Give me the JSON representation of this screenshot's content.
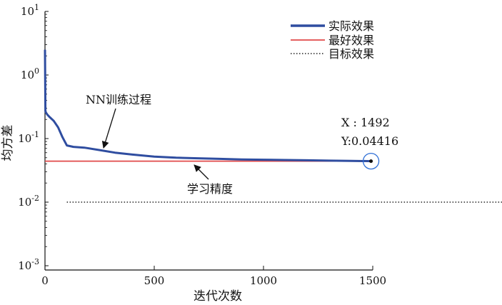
{
  "chart_data": {
    "type": "line",
    "title": "",
    "xlabel": "迭代次数",
    "ylabel": "均方差",
    "xlim": [
      0,
      1500
    ],
    "ylim": [
      0.001,
      10
    ],
    "yscale": "log",
    "x_ticks": [
      0,
      500,
      1000,
      1500
    ],
    "x_tick_labels": [
      "0",
      "500",
      "1000",
      "1500"
    ],
    "y_ticks": [
      0.001,
      0.01,
      0.1,
      1,
      10
    ],
    "y_tick_labels": [
      {
        "base": "10",
        "exp": "-3"
      },
      {
        "base": "10",
        "exp": "-2"
      },
      {
        "base": "10",
        "exp": "-1"
      },
      {
        "base": "10",
        "exp": "0"
      },
      {
        "base": "10",
        "exp": "1"
      }
    ],
    "grid": false,
    "legend_position": "top-right",
    "series": [
      {
        "name": "实际效果",
        "color": "#2f4da0",
        "style": "solid-thick",
        "x": [
          0,
          1,
          2,
          5,
          10,
          20,
          40,
          60,
          80,
          100,
          130,
          180,
          250,
          320,
          400,
          500,
          600,
          700,
          800,
          900,
          1000,
          1100,
          1200,
          1300,
          1400,
          1492
        ],
        "y": [
          2.5,
          0.8,
          0.27,
          0.255,
          0.24,
          0.22,
          0.19,
          0.15,
          0.105,
          0.078,
          0.074,
          0.072,
          0.066,
          0.06,
          0.056,
          0.052,
          0.05,
          0.049,
          0.048,
          0.047,
          0.0465,
          0.046,
          0.0455,
          0.045,
          0.0446,
          0.04416
        ]
      },
      {
        "name": "最好效果",
        "color": "#e04a4a",
        "style": "solid-thin",
        "x": [
          0,
          1492
        ],
        "y": [
          0.04416,
          0.04416
        ]
      },
      {
        "name": "目标效果",
        "color": "#222222",
        "style": "dotted",
        "x": [
          100,
          2100
        ],
        "y": [
          0.01,
          0.01
        ]
      }
    ],
    "annotations": {
      "nn_training": {
        "text": "NN训练过程",
        "x": 255,
        "y": 0.066
      },
      "learning_accuracy": {
        "text": "学习精度",
        "x": 690,
        "y": 0.04416
      },
      "datatip": {
        "x_label": "X : 1492",
        "y_label": "Y:0.04416",
        "x": 1492,
        "y": 0.04416,
        "circle_color": "#2f6fd6"
      }
    }
  }
}
